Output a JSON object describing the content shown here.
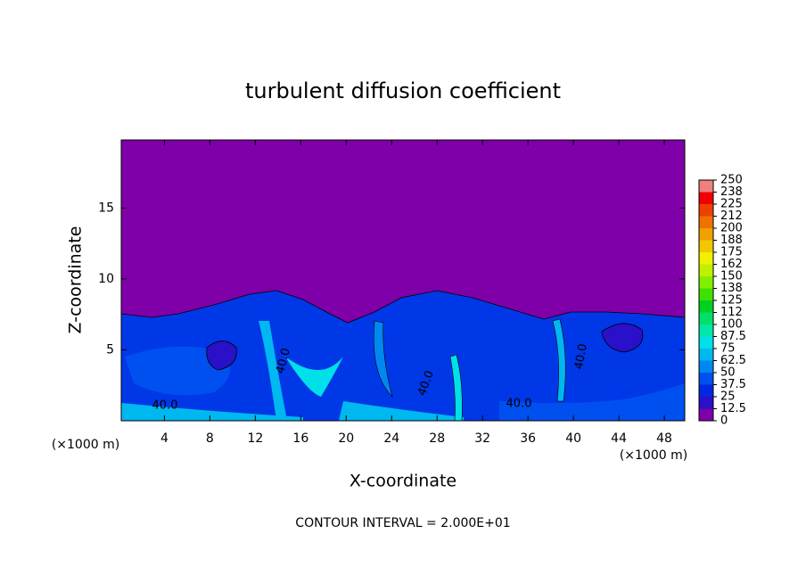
{
  "chart_data": {
    "type": "contour",
    "title": "turbulent diffusion coefficient",
    "x_label": "X-coordinate",
    "y_label": "Z-coordinate",
    "x_unit": "(×1000 m)",
    "footer": "CONTOUR INTERVAL = 2.000E+01",
    "xlim": [
      0.2,
      49.8
    ],
    "xticks": [
      4,
      8,
      12,
      16,
      20,
      24,
      28,
      32,
      36,
      40,
      44,
      48
    ],
    "ylim": [
      0,
      19.8
    ],
    "yticks": [
      5,
      10,
      15
    ],
    "contour_labels": [
      "40.0",
      "40.0",
      "40.0",
      "40.0",
      "40.0"
    ],
    "colorbar": {
      "ticks": [
        0,
        12.5,
        25,
        37.5,
        50,
        62.5,
        75,
        87.5,
        100,
        {
          "value": 112.5,
          "label": "112"
        },
        125,
        {
          "value": 137.5,
          "label": "138"
        },
        150,
        {
          "value": 162.5,
          "label": "162"
        },
        175,
        {
          "value": 187.5,
          "label": "188"
        },
        200,
        {
          "value": 212.5,
          "label": "212"
        },
        225,
        {
          "value": 237.5,
          "label": "238"
        },
        250
      ],
      "colors": [
        "#7f00a8",
        "#2a10c8",
        "#0028e0",
        "#0050f0",
        "#0088f0",
        "#00b8f0",
        "#00e0e8",
        "#00e8a8",
        "#00e068",
        "#00d020",
        "#40e000",
        "#80f000",
        "#c0f000",
        "#f0f000",
        "#f0c800",
        "#f0a000",
        "#f07000",
        "#f04000",
        "#f00000",
        "#f08080"
      ]
    }
  }
}
